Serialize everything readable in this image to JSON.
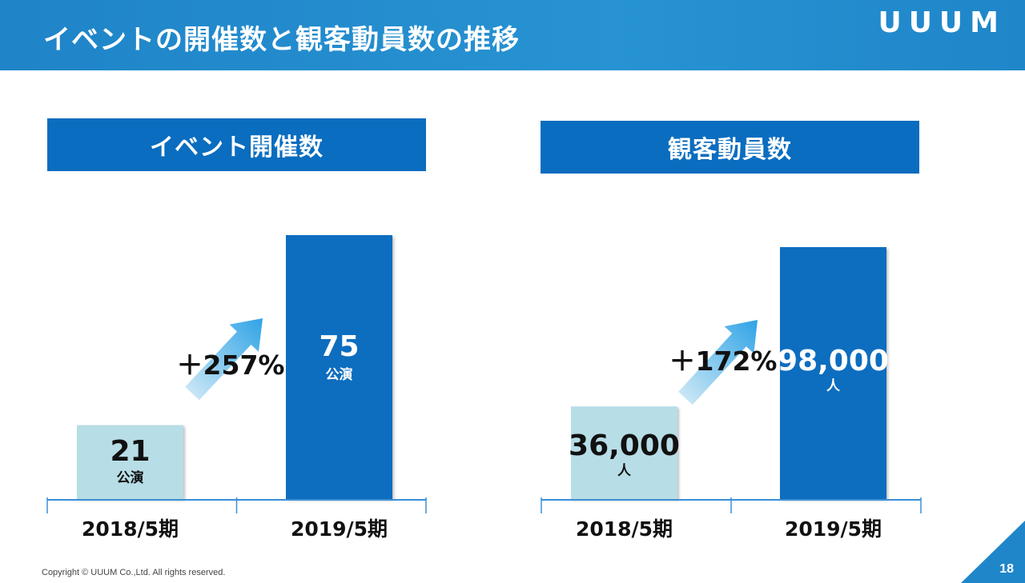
{
  "header": {
    "title": "イベントの開催数と観客動員数の推移",
    "logo": "UUUM"
  },
  "footer": {
    "copyright": "Copyright © UUUM Co.,Ltd. All rights reserved.",
    "page": "18"
  },
  "colors": {
    "header": "#1f86c9",
    "panel": "#0a6dbf",
    "bar_prev": "#b7dde6",
    "bar_curr": "#0a6dbf",
    "arrow": "#3aa8e8",
    "axis": "#3a8fd6"
  },
  "chart_data": [
    {
      "type": "bar",
      "title": "イベント開催数",
      "categories": [
        "2018/5期",
        "2019/5期"
      ],
      "values": [
        21,
        75
      ],
      "value_labels": [
        "21",
        "75"
      ],
      "unit": "公演",
      "growth_label": "＋257%"
    },
    {
      "type": "bar",
      "title": "観客動員数",
      "categories": [
        "2018/5期",
        "2019/5期"
      ],
      "values": [
        36000,
        98000
      ],
      "value_labels": [
        "36,000",
        "98,000"
      ],
      "unit": "人",
      "growth_label": "＋172%"
    }
  ]
}
